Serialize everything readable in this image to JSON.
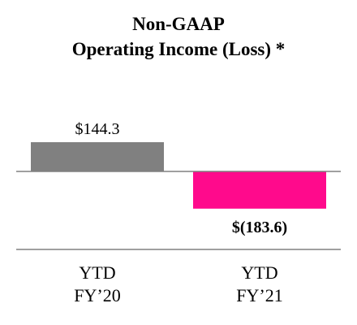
{
  "chart_data": {
    "type": "bar",
    "title": [
      "Non-GAAP",
      "Operating Income (Loss) *"
    ],
    "categories": [
      [
        "YTD",
        "FY’20"
      ],
      [
        "YTD",
        "FY’21"
      ]
    ],
    "values": [
      144.3,
      -183.6
    ],
    "data_labels": [
      "$144.3",
      "$(183.6)"
    ],
    "data_label_bold": [
      false,
      true
    ],
    "colors": [
      "#808080",
      "#ff0a8c"
    ],
    "ylim": [
      -183.6,
      144.3
    ],
    "grid": false,
    "legend": "none"
  }
}
